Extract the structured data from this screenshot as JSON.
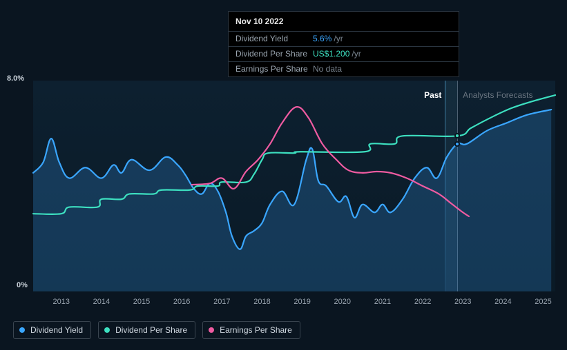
{
  "tooltip": {
    "date": "Nov 10 2022",
    "rows": [
      {
        "label": "Dividend Yield",
        "value": "5.6%",
        "suffix": "/yr",
        "color": "#3aa6ff"
      },
      {
        "label": "Dividend Per Share",
        "value": "US$1.200",
        "suffix": "/yr",
        "color": "#3de0c0"
      },
      {
        "label": "Earnings Per Share",
        "value": "No data",
        "suffix": "",
        "color": "#7a8590"
      }
    ]
  },
  "chart": {
    "background_color": "#0a1520",
    "plot_gradient_top": "#0d2030",
    "plot_gradient_bottom": "#0a1a26",
    "y_axis": {
      "min_label": "0%",
      "max_label": "8.0%",
      "min": 0,
      "max": 8
    },
    "x_axis": {
      "start_year": 2012.3,
      "end_year": 2025.3,
      "ticks": [
        2013,
        2014,
        2015,
        2016,
        2017,
        2018,
        2019,
        2020,
        2021,
        2022,
        2023,
        2024,
        2025
      ]
    },
    "forecast_start_year": 2022.55,
    "tooltip_x_year": 2022.86,
    "past_label": "Past",
    "forecast_label": "Analysts Forecasts",
    "series": [
      {
        "name": "Dividend Yield",
        "color": "#3aa6ff",
        "fill": true,
        "fill_opacity": 0.22,
        "stroke_width": 2.2,
        "points": [
          [
            2012.3,
            4.5
          ],
          [
            2012.55,
            4.9
          ],
          [
            2012.75,
            5.8
          ],
          [
            2012.95,
            4.9
          ],
          [
            2013.2,
            4.3
          ],
          [
            2013.6,
            4.7
          ],
          [
            2014.0,
            4.3
          ],
          [
            2014.3,
            4.8
          ],
          [
            2014.5,
            4.5
          ],
          [
            2014.75,
            5.0
          ],
          [
            2015.2,
            4.6
          ],
          [
            2015.6,
            5.1
          ],
          [
            2015.9,
            4.8
          ],
          [
            2016.1,
            4.4
          ],
          [
            2016.3,
            3.9
          ],
          [
            2016.5,
            3.7
          ],
          [
            2016.7,
            4.1
          ],
          [
            2016.9,
            3.8
          ],
          [
            2017.1,
            3.0
          ],
          [
            2017.25,
            2.1
          ],
          [
            2017.45,
            1.6
          ],
          [
            2017.6,
            2.1
          ],
          [
            2017.8,
            2.3
          ],
          [
            2018.0,
            2.6
          ],
          [
            2018.2,
            3.3
          ],
          [
            2018.5,
            3.8
          ],
          [
            2018.8,
            3.3
          ],
          [
            2019.1,
            5.0
          ],
          [
            2019.25,
            5.4
          ],
          [
            2019.4,
            4.2
          ],
          [
            2019.6,
            4.0
          ],
          [
            2019.9,
            3.4
          ],
          [
            2020.1,
            3.6
          ],
          [
            2020.3,
            2.8
          ],
          [
            2020.5,
            3.3
          ],
          [
            2020.8,
            3.0
          ],
          [
            2021.0,
            3.3
          ],
          [
            2021.2,
            3.0
          ],
          [
            2021.5,
            3.5
          ],
          [
            2021.8,
            4.3
          ],
          [
            2022.1,
            4.7
          ],
          [
            2022.35,
            4.3
          ],
          [
            2022.6,
            5.1
          ],
          [
            2022.86,
            5.6
          ],
          [
            2023.1,
            5.6
          ],
          [
            2023.6,
            6.1
          ],
          [
            2024.1,
            6.4
          ],
          [
            2024.6,
            6.7
          ],
          [
            2025.2,
            6.9
          ]
        ],
        "marker_at": [
          2022.86,
          5.6
        ]
      },
      {
        "name": "Dividend Per Share",
        "color": "#3de0c0",
        "fill": false,
        "stroke_width": 2.2,
        "points": [
          [
            2012.3,
            2.95
          ],
          [
            2013.0,
            2.95
          ],
          [
            2013.2,
            3.2
          ],
          [
            2013.9,
            3.2
          ],
          [
            2014.0,
            3.5
          ],
          [
            2014.5,
            3.5
          ],
          [
            2014.7,
            3.7
          ],
          [
            2015.3,
            3.7
          ],
          [
            2015.5,
            3.85
          ],
          [
            2016.2,
            3.85
          ],
          [
            2016.4,
            4.0
          ],
          [
            2016.9,
            4.0
          ],
          [
            2017.0,
            4.15
          ],
          [
            2017.6,
            4.15
          ],
          [
            2017.8,
            4.45
          ],
          [
            2018.0,
            5.0
          ],
          [
            2018.15,
            5.25
          ],
          [
            2018.8,
            5.25
          ],
          [
            2018.95,
            5.3
          ],
          [
            2020.55,
            5.3
          ],
          [
            2020.7,
            5.6
          ],
          [
            2021.3,
            5.6
          ],
          [
            2021.5,
            5.9
          ],
          [
            2022.86,
            5.9
          ],
          [
            2023.2,
            6.2
          ],
          [
            2023.7,
            6.6
          ],
          [
            2024.2,
            6.95
          ],
          [
            2024.7,
            7.2
          ],
          [
            2025.3,
            7.45
          ]
        ],
        "marker_at": [
          2022.86,
          5.9
        ]
      },
      {
        "name": "Earnings Per Share",
        "color": "#ef5ba1",
        "fill": false,
        "stroke_width": 2.2,
        "points": [
          [
            2016.25,
            4.05
          ],
          [
            2016.7,
            4.1
          ],
          [
            2017.0,
            4.3
          ],
          [
            2017.3,
            3.9
          ],
          [
            2017.6,
            4.55
          ],
          [
            2017.9,
            5.0
          ],
          [
            2018.2,
            5.6
          ],
          [
            2018.5,
            6.4
          ],
          [
            2018.85,
            7.0
          ],
          [
            2019.15,
            6.6
          ],
          [
            2019.5,
            5.6
          ],
          [
            2019.85,
            5.0
          ],
          [
            2020.15,
            4.6
          ],
          [
            2020.5,
            4.5
          ],
          [
            2020.85,
            4.55
          ],
          [
            2021.2,
            4.5
          ],
          [
            2021.6,
            4.3
          ],
          [
            2022.0,
            4.0
          ],
          [
            2022.4,
            3.7
          ],
          [
            2022.7,
            3.35
          ],
          [
            2023.0,
            3.0
          ],
          [
            2023.15,
            2.85
          ]
        ]
      }
    ]
  },
  "legend": {
    "border_color": "#3a4550",
    "text_color": "#d0d8e0",
    "items": [
      {
        "label": "Dividend Yield",
        "color": "#3aa6ff"
      },
      {
        "label": "Dividend Per Share",
        "color": "#3de0c0"
      },
      {
        "label": "Earnings Per Share",
        "color": "#ef5ba1"
      }
    ]
  }
}
